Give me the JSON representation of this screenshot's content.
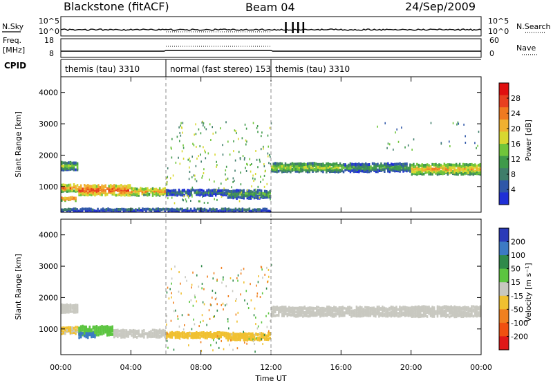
{
  "header": {
    "radar": "Blackstone (fitACF)",
    "beam": "Beam 04",
    "date": "24/Sep/2009"
  },
  "status_panels": {
    "left_labels": {
      "nsky": "N.Sky",
      "freq": "Freq.",
      "freq_unit": "[MHz]",
      "cpid": "CPID"
    },
    "right_labels": {
      "nsearch": "N.Search",
      "nave": "Nave"
    },
    "noise_ticks_left": [
      "10^5",
      "10^0"
    ],
    "noise_ticks_right": [
      "10^5",
      "10^0"
    ],
    "freq_ticks": [
      "18",
      "8"
    ],
    "nave_ticks": [
      "60",
      "0"
    ],
    "cpid_modes": [
      {
        "label": "themis (tau) 3310",
        "start_h": 0,
        "end_h": 6
      },
      {
        "label": "normal (fast stereo) 153",
        "start_h": 6,
        "end_h": 12
      },
      {
        "label": "themis (tau) 3310",
        "start_h": 12,
        "end_h": 24
      }
    ]
  },
  "colors": {
    "power_scale": [
      "#1f2fd6",
      "#2f57a8",
      "#3f7d6a",
      "#3f9a4a",
      "#70c53a",
      "#d8d830",
      "#f0b030",
      "#f07a20",
      "#e84020",
      "#e01010"
    ],
    "velocity_scale": [
      "#2a3ab8",
      "#3c7ac4",
      "#2f8a4a",
      "#5cc540",
      "#c8c8c0",
      "#f0c030",
      "#f08020",
      "#f05010",
      "#e01818"
    ]
  },
  "chart_data": [
    {
      "type": "heatmap",
      "title": "",
      "xlabel": "",
      "ylabel": "Slant Range [km]",
      "xlim": [
        0,
        24
      ],
      "ylim": [
        180,
        4500
      ],
      "x_ticks": [
        0,
        4,
        8,
        12,
        16,
        20,
        24
      ],
      "y_ticks": [
        1000,
        2000,
        3000,
        4000
      ],
      "y_tick_labels": [
        "1000",
        "2000",
        "3000",
        "4000"
      ],
      "colorbar": {
        "label": "Power [dB]",
        "ticks": [
          "28",
          "24",
          "20",
          "16",
          "12",
          "8",
          "4"
        ],
        "range": [
          0,
          30
        ]
      },
      "bands": [
        {
          "t_start": 0.0,
          "t_end": 1.0,
          "r_center": 1650,
          "r_width": 260,
          "level": 15
        },
        {
          "t_start": 0.0,
          "t_end": 1.0,
          "r_center": 950,
          "r_width": 220,
          "level": 22
        },
        {
          "t_start": 0.0,
          "t_end": 0.9,
          "r_center": 600,
          "r_width": 100,
          "level": 24
        },
        {
          "t_start": 1.0,
          "t_end": 4.0,
          "r_center": 880,
          "r_width": 320,
          "level": 25
        },
        {
          "t_start": 4.0,
          "t_end": 6.0,
          "r_center": 830,
          "r_width": 240,
          "level": 21
        },
        {
          "t_start": 6.0,
          "t_end": 9.5,
          "r_center": 800,
          "r_width": 180,
          "level": 9
        },
        {
          "t_start": 9.5,
          "t_end": 12.0,
          "r_center": 750,
          "r_width": 260,
          "level": 12
        },
        {
          "t_start": 12.0,
          "t_end": 16.0,
          "r_center": 1600,
          "r_width": 280,
          "level": 16
        },
        {
          "t_start": 16.0,
          "t_end": 20.0,
          "r_center": 1600,
          "r_width": 260,
          "level": 12
        },
        {
          "t_start": 20.0,
          "t_end": 24.0,
          "r_center": 1550,
          "r_width": 330,
          "level": 20
        },
        {
          "t_start": 0.0,
          "t_end": 12.0,
          "r_center": 250,
          "r_width": 80,
          "level": 6
        }
      ]
    },
    {
      "type": "heatmap",
      "title": "",
      "xlabel": "Time UT",
      "ylabel": "Slant Range [km]",
      "xlim": [
        0,
        24
      ],
      "ylim": [
        180,
        4500
      ],
      "x_ticks": [
        0,
        4,
        8,
        12,
        16,
        20,
        24
      ],
      "x_tick_labels": [
        "00:00",
        "04:00",
        "08:00",
        "12:00",
        "16:00",
        "20:00",
        "00:00"
      ],
      "y_ticks": [
        1000,
        2000,
        3000,
        4000
      ],
      "y_tick_labels": [
        "1000",
        "2000",
        "3000",
        "4000"
      ],
      "colorbar": {
        "label": "Velocity [m s⁻¹]",
        "ticks": [
          "200",
          "100",
          "50",
          "15",
          "-15",
          "-50",
          "-100",
          "-200"
        ],
        "range": [
          -250,
          250
        ]
      },
      "bands": [
        {
          "t_start": 0.0,
          "t_end": 1.0,
          "r_center": 1650,
          "r_width": 260,
          "velocity": 0
        },
        {
          "t_start": 0.0,
          "t_end": 1.0,
          "r_center": 950,
          "r_width": 220,
          "velocity": -20
        },
        {
          "t_start": 1.0,
          "t_end": 3.0,
          "r_center": 950,
          "r_width": 300,
          "velocity": 40
        },
        {
          "t_start": 1.0,
          "t_end": 2.0,
          "r_center": 800,
          "r_width": 160,
          "velocity": 180
        },
        {
          "t_start": 3.0,
          "t_end": 6.0,
          "r_center": 850,
          "r_width": 240,
          "velocity": 0
        },
        {
          "t_start": 6.0,
          "t_end": 9.5,
          "r_center": 800,
          "r_width": 180,
          "velocity": -30
        },
        {
          "t_start": 9.5,
          "t_end": 12.0,
          "r_center": 750,
          "r_width": 240,
          "velocity": -40
        },
        {
          "t_start": 12.0,
          "t_end": 20.0,
          "r_center": 1550,
          "r_width": 300,
          "velocity": 0
        },
        {
          "t_start": 20.0,
          "t_end": 24.0,
          "r_center": 1550,
          "r_width": 330,
          "velocity": 0
        }
      ]
    }
  ]
}
